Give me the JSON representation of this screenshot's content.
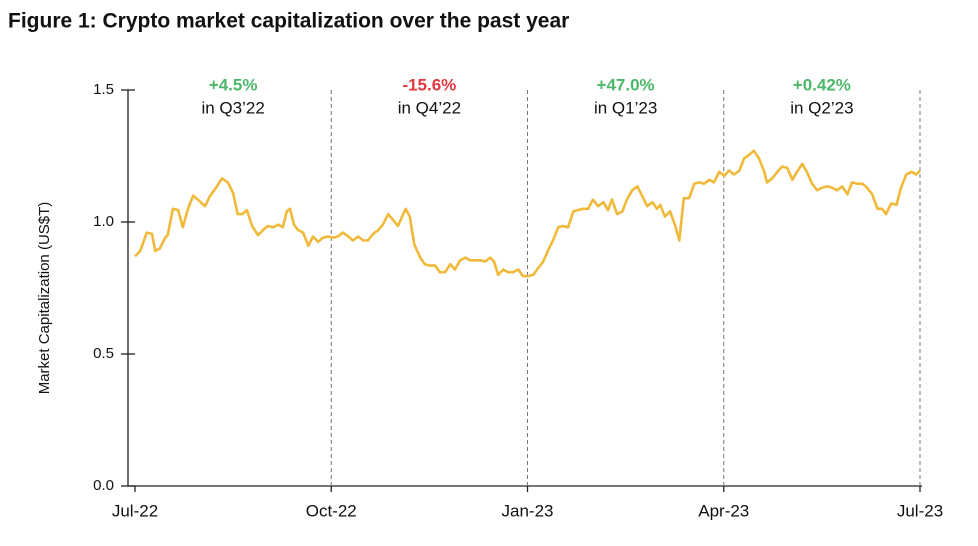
{
  "chart_data": {
    "type": "line",
    "title": "Figure 1: Crypto market capitalization over the past year",
    "y_label": "Market Capitalization (US$T)",
    "xlim": [
      0,
      12
    ],
    "xticks": [
      {
        "value": 0,
        "label": "Jul-22"
      },
      {
        "value": 3,
        "label": "Oct-22"
      },
      {
        "value": 6,
        "label": "Jan-23"
      },
      {
        "value": 9,
        "label": "Apr-23"
      },
      {
        "value": 12,
        "label": "Jul-23"
      }
    ],
    "ylim": [
      0,
      1.5
    ],
    "yticks": [
      {
        "value": 0,
        "label": "0.0"
      },
      0.5,
      {
        "value": 1,
        "label": "1.0"
      },
      {
        "value": 1.5,
        "label": "1.5"
      }
    ],
    "annotations": [
      {
        "text": "+4.5%",
        "subtext": "in Q3’22",
        "color": "#4cb86a"
      },
      {
        "text": "-15.6%",
        "subtext": "in Q4’22",
        "color": "#e0393e"
      },
      {
        "text": "+47.0%",
        "subtext": "in Q1’23",
        "color": "#4cb86a"
      },
      {
        "text": "+0.42%",
        "subtext": "in Q2’23",
        "color": "#4cb86a"
      }
    ],
    "series": [
      {
        "color": "#f0b93a",
        "x": [
          0,
          0.08,
          0.18,
          0.26,
          0.31,
          0.38,
          0.46,
          0.5,
          0.58,
          0.66,
          0.73,
          0.81,
          0.89,
          0.96,
          1.07,
          1.15,
          1.24,
          1.33,
          1.42,
          1.5,
          1.57,
          1.64,
          1.71,
          1.79,
          1.88,
          1.96,
          2.03,
          2.11,
          2.19,
          2.26,
          2.32,
          2.37,
          2.43,
          2.49,
          2.57,
          2.65,
          2.72,
          2.8,
          2.87,
          2.95,
          3.03,
          3.1,
          3.18,
          3.26,
          3.33,
          3.41,
          3.49,
          3.56,
          3.64,
          3.72,
          3.79,
          3.87,
          3.94,
          4.02,
          4.1,
          4.14,
          4.2,
          4.27,
          4.36,
          4.43,
          4.51,
          4.59,
          4.66,
          4.74,
          4.82,
          4.89,
          4.97,
          5.05,
          5.12,
          5.2,
          5.28,
          5.35,
          5.43,
          5.49,
          5.55,
          5.63,
          5.7,
          5.78,
          5.86,
          5.93,
          6.01,
          6.09,
          6.16,
          6.24,
          6.32,
          6.39,
          6.47,
          6.54,
          6.62,
          6.7,
          6.77,
          6.85,
          6.93,
          7.0,
          7.08,
          7.16,
          7.23,
          7.29,
          7.37,
          7.45,
          7.52,
          7.6,
          7.68,
          7.75,
          7.83,
          7.91,
          7.98,
          8.03,
          8.1,
          8.18,
          8.26,
          8.32,
          8.39,
          8.47,
          8.55,
          8.62,
          8.7,
          8.78,
          8.85,
          8.93,
          9.01,
          9.08,
          9.16,
          9.24,
          9.31,
          9.39,
          9.46,
          9.54,
          9.62,
          9.66,
          9.74,
          9.82,
          9.89,
          9.97,
          10.05,
          10.12,
          10.2,
          10.27,
          10.35,
          10.43,
          10.5,
          10.58,
          10.66,
          10.73,
          10.81,
          10.89,
          10.96,
          11.04,
          11.12,
          11.19,
          11.27,
          11.35,
          11.42,
          11.48,
          11.56,
          11.64,
          11.71,
          11.79,
          11.87,
          11.94,
          12.0
        ],
        "values": [
          0.87,
          0.89,
          0.96,
          0.955,
          0.89,
          0.9,
          0.94,
          0.95,
          1.05,
          1.045,
          0.98,
          1.05,
          1.1,
          1.085,
          1.06,
          1.1,
          1.13,
          1.165,
          1.15,
          1.11,
          1.03,
          1.03,
          1.045,
          0.985,
          0.95,
          0.97,
          0.985,
          0.98,
          0.99,
          0.98,
          1.04,
          1.05,
          0.99,
          0.97,
          0.96,
          0.91,
          0.945,
          0.925,
          0.94,
          0.945,
          0.94,
          0.945,
          0.96,
          0.945,
          0.93,
          0.945,
          0.93,
          0.93,
          0.955,
          0.97,
          0.99,
          1.03,
          1.01,
          0.985,
          1.03,
          1.05,
          1.02,
          0.915,
          0.865,
          0.84,
          0.835,
          0.835,
          0.81,
          0.81,
          0.84,
          0.82,
          0.855,
          0.865,
          0.855,
          0.855,
          0.855,
          0.85,
          0.865,
          0.85,
          0.8,
          0.82,
          0.81,
          0.81,
          0.82,
          0.795,
          0.795,
          0.8,
          0.825,
          0.85,
          0.895,
          0.93,
          0.98,
          0.985,
          0.98,
          1.04,
          1.045,
          1.05,
          1.05,
          1.085,
          1.06,
          1.075,
          1.045,
          1.085,
          1.03,
          1.04,
          1.085,
          1.12,
          1.135,
          1.1,
          1.06,
          1.075,
          1.05,
          1.065,
          1.02,
          1.04,
          0.985,
          0.93,
          1.09,
          1.09,
          1.145,
          1.15,
          1.145,
          1.16,
          1.15,
          1.19,
          1.175,
          1.195,
          1.18,
          1.195,
          1.24,
          1.255,
          1.27,
          1.24,
          1.19,
          1.15,
          1.165,
          1.19,
          1.21,
          1.205,
          1.16,
          1.19,
          1.22,
          1.19,
          1.145,
          1.12,
          1.13,
          1.135,
          1.13,
          1.12,
          1.135,
          1.105,
          1.15,
          1.145,
          1.145,
          1.13,
          1.105,
          1.05,
          1.05,
          1.03,
          1.07,
          1.065,
          1.13,
          1.18,
          1.19,
          1.18,
          1.195
        ]
      }
    ]
  }
}
